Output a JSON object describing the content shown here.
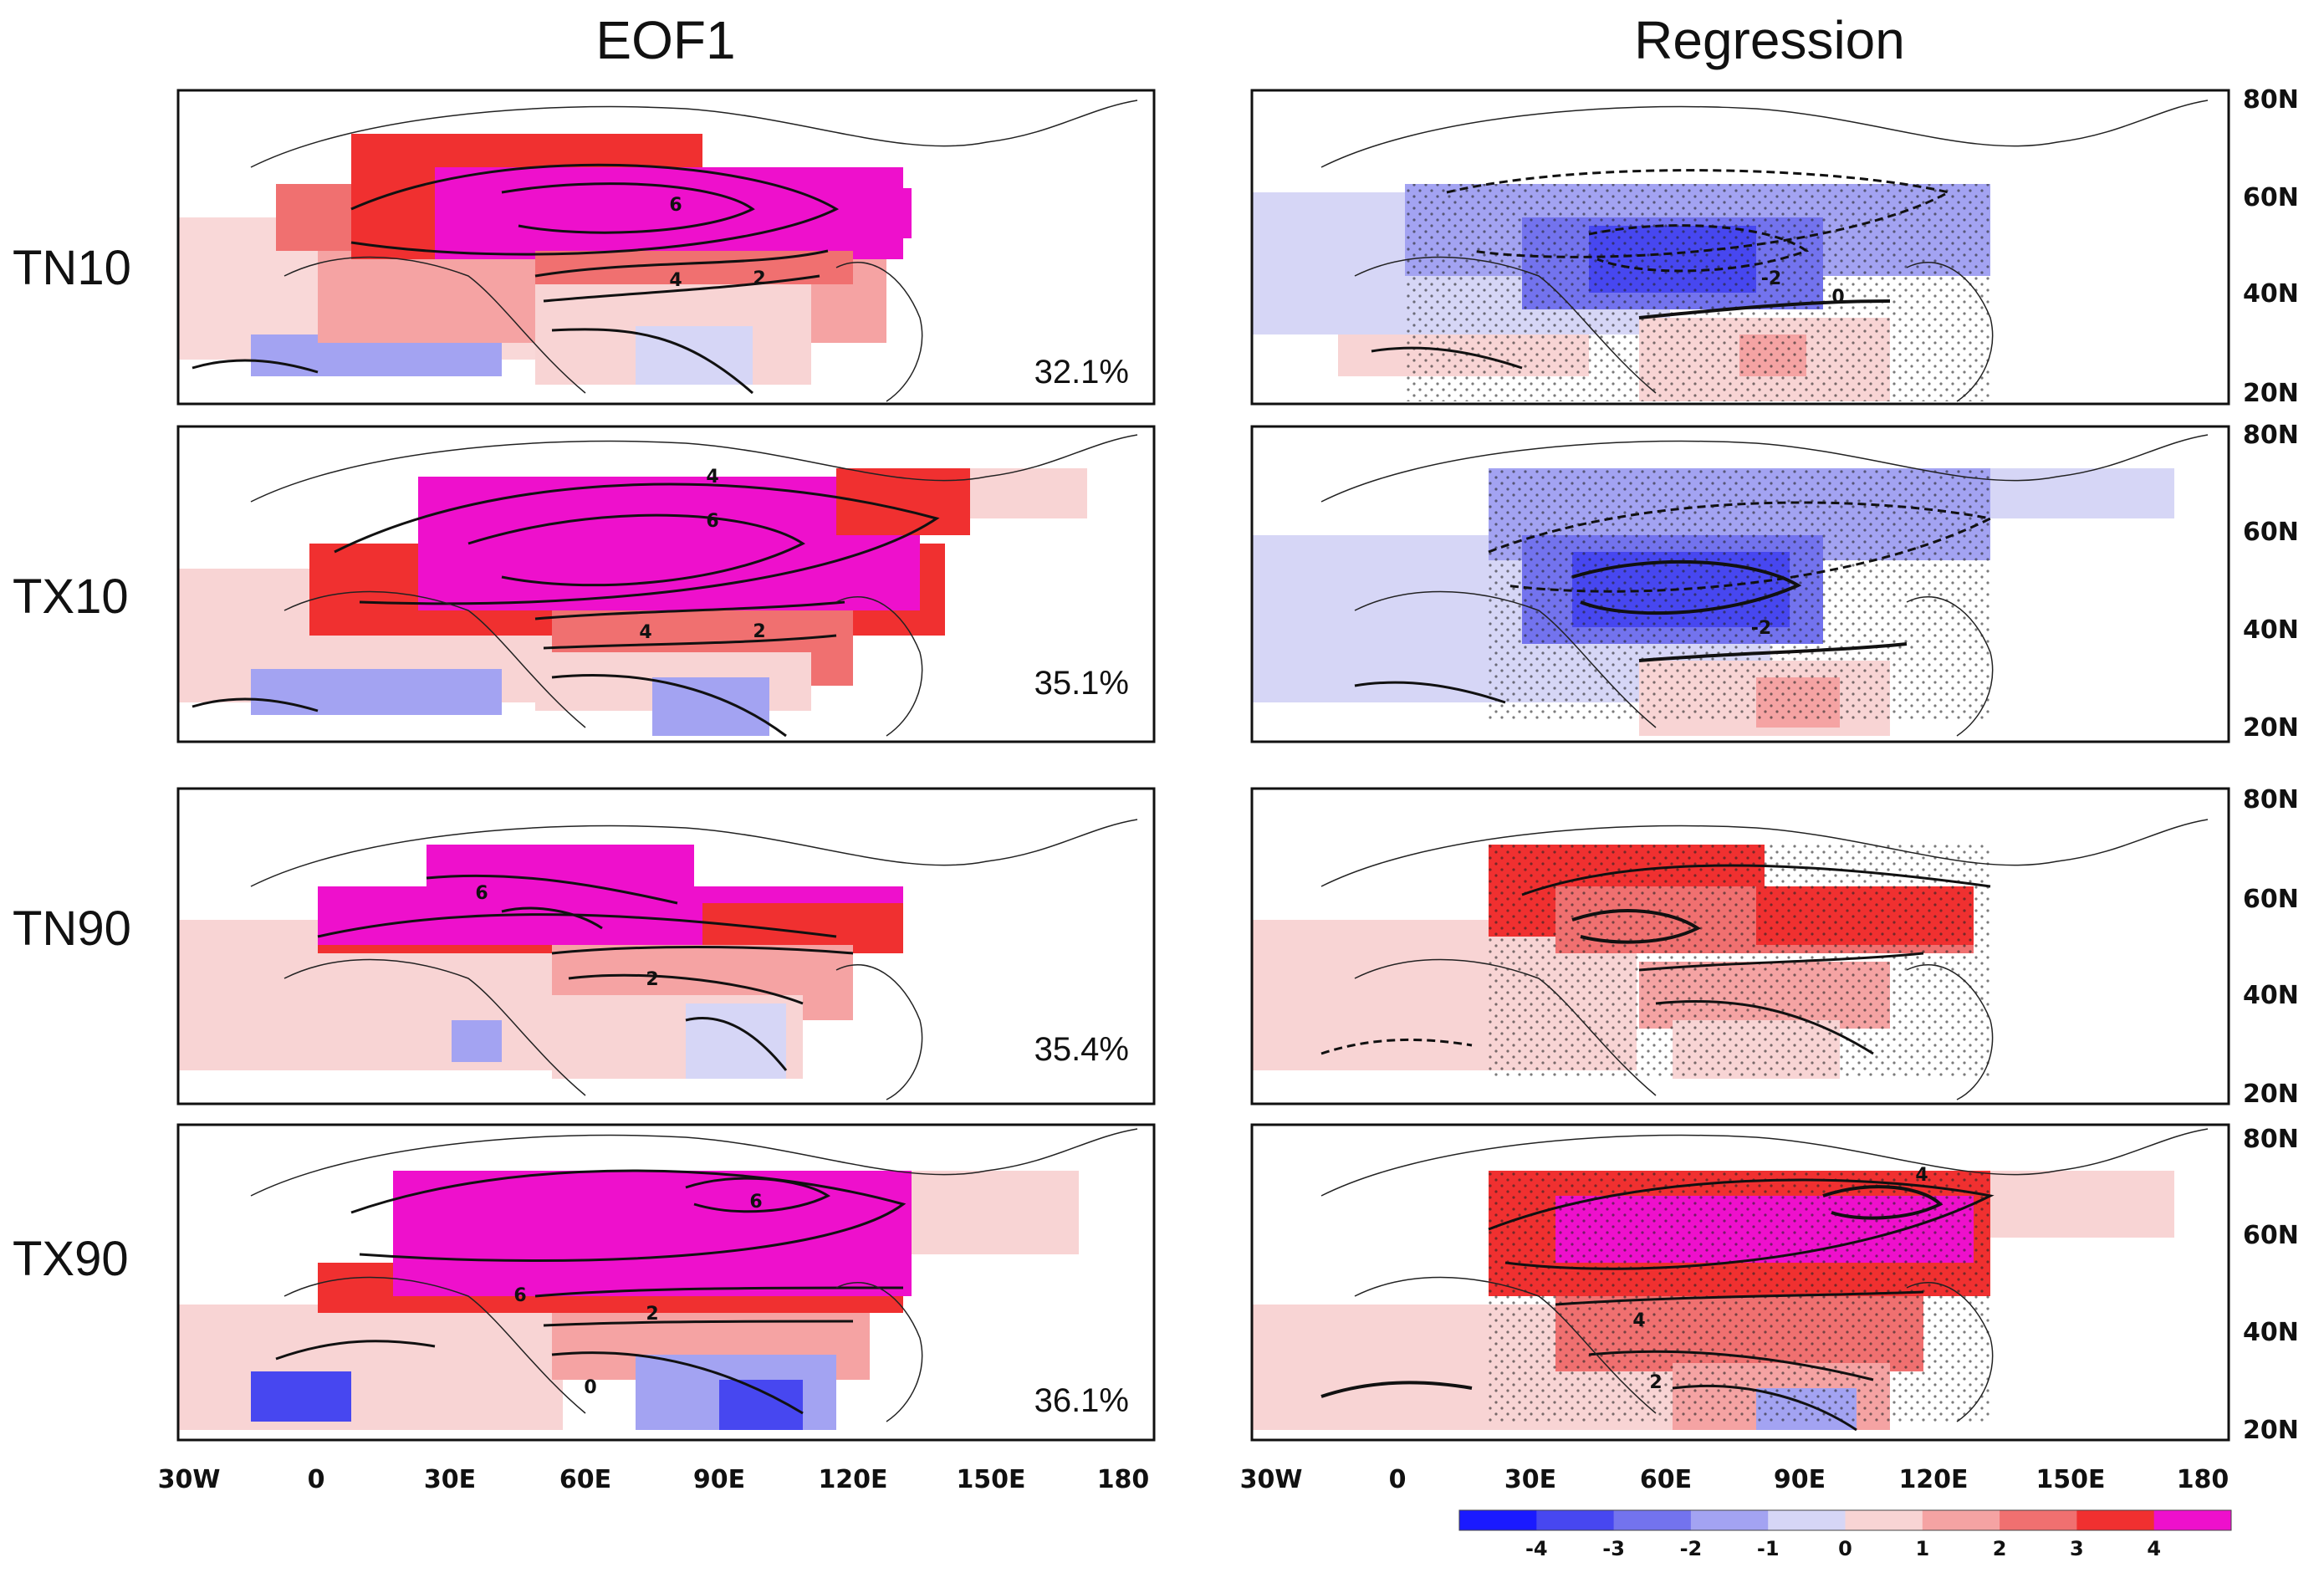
{
  "chart_data": {
    "type": "map-panel-grid",
    "column_titles": [
      "EOF1",
      "Regression"
    ],
    "rows": [
      {
        "label": "TN10",
        "eof1_variance": "32.1%",
        "eof1_contour_labels": [
          "6",
          "4",
          "2"
        ],
        "regression_contour_labels": [
          "-2",
          "0"
        ],
        "regression_sign": "negative"
      },
      {
        "label": "TX10",
        "eof1_variance": "35.1%",
        "eof1_contour_labels": [
          "4",
          "6",
          "4",
          "2"
        ],
        "regression_contour_labels": [
          "-2"
        ],
        "regression_sign": "negative"
      },
      {
        "label": "TN90",
        "eof1_variance": "35.4%",
        "eof1_contour_labels": [
          "6",
          "2"
        ],
        "regression_contour_labels": [],
        "regression_sign": "positive"
      },
      {
        "label": "TX90",
        "eof1_variance": "36.1%",
        "eof1_contour_labels": [
          "6",
          "6",
          "2",
          "0"
        ],
        "regression_contour_labels": [
          "4",
          "4",
          "2"
        ],
        "regression_sign": "positive"
      }
    ],
    "x_axis": {
      "ticks": [
        "30W",
        "0",
        "30E",
        "60E",
        "90E",
        "120E",
        "150E",
        "180"
      ],
      "range_deg": [
        -30,
        180
      ]
    },
    "y_axis": {
      "ticks": [
        "80N",
        "60N",
        "40N",
        "20N"
      ],
      "range_deg": [
        20,
        80
      ]
    },
    "colorbar": {
      "levels": [
        "-4",
        "-3",
        "-2",
        "-1",
        "0",
        "1",
        "2",
        "3",
        "4"
      ],
      "colors": [
        "#1a1aff",
        "#4747f0",
        "#7373ee",
        "#a3a3f2",
        "#d6d6f6",
        "#f8d4d4",
        "#f5a3a3",
        "#f07070",
        "#f03030",
        "#ee10cc"
      ]
    }
  }
}
